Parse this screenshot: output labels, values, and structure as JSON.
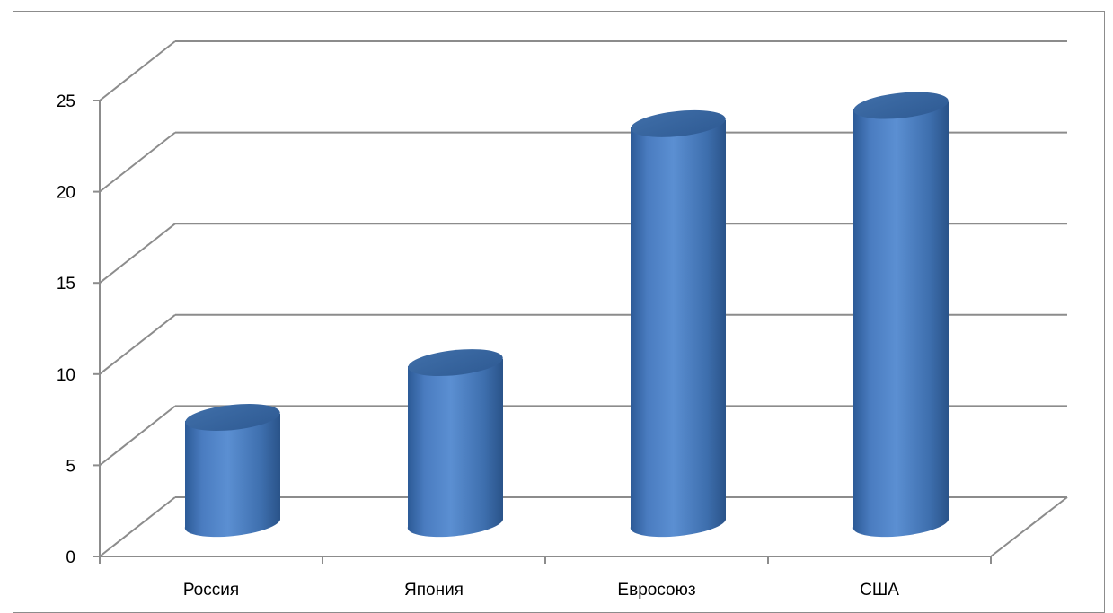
{
  "chart_data": {
    "type": "bar",
    "style": "3d-cylinder",
    "categories": [
      "Россия",
      "Япония",
      "Евросоюз",
      "США"
    ],
    "values": [
      6.2,
      9.2,
      22.3,
      23.3
    ],
    "ylim": [
      0,
      25
    ],
    "yticks": [
      "0",
      "5",
      "10",
      "15",
      "20",
      "25"
    ],
    "grid": true,
    "legend": "none",
    "colors": {
      "bar": "#4f81bd",
      "grid": "#8c8c8c"
    }
  }
}
